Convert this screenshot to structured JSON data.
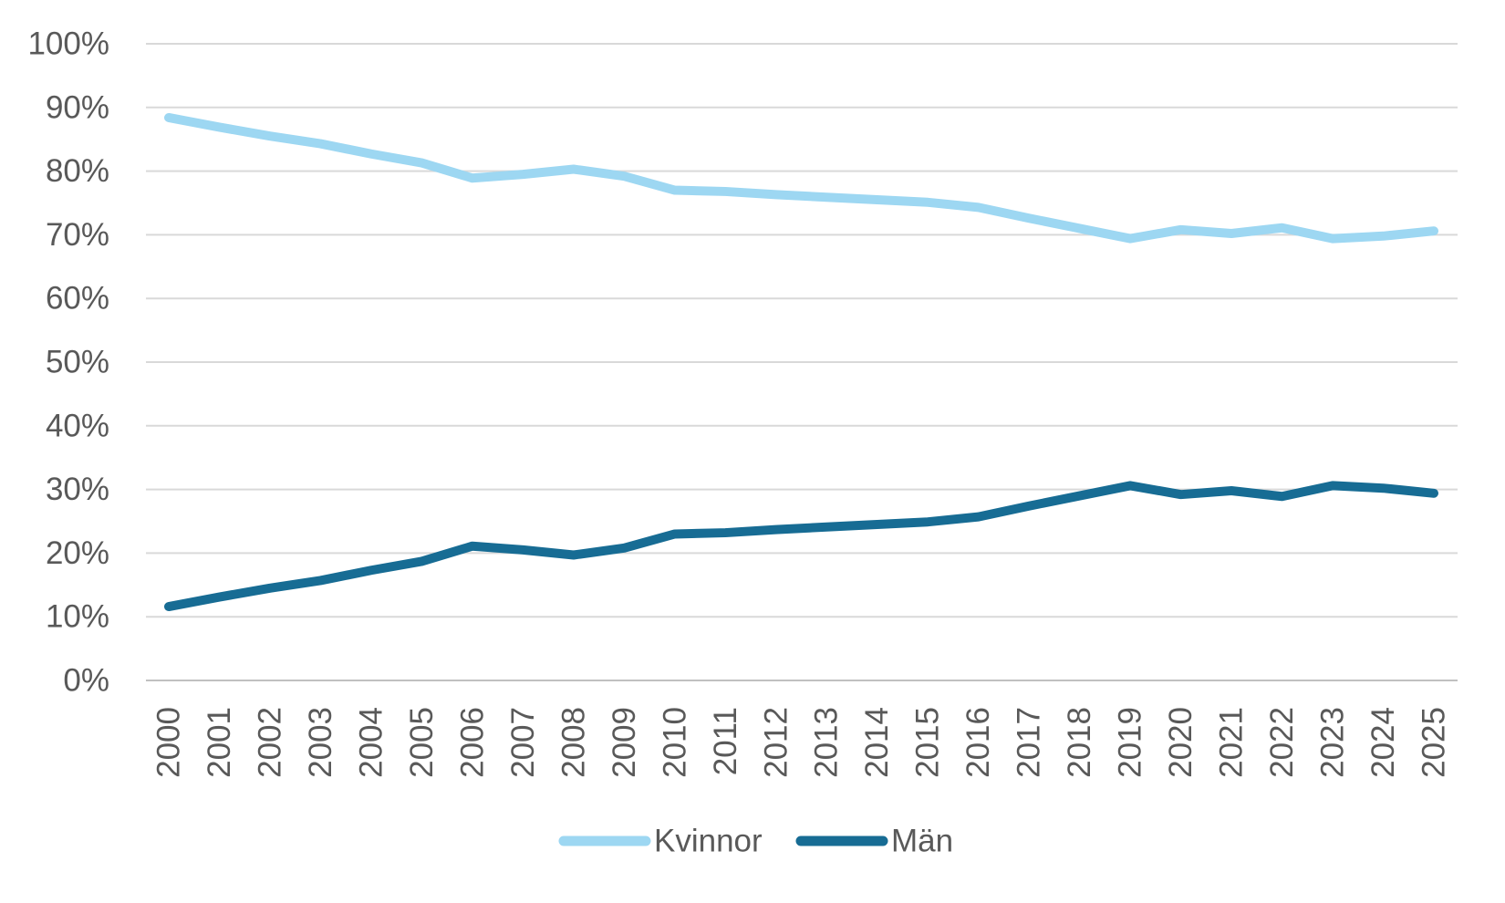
{
  "chart_data": {
    "type": "line",
    "x": [
      2000,
      2001,
      2002,
      2003,
      2004,
      2005,
      2006,
      2007,
      2008,
      2009,
      2010,
      2011,
      2012,
      2013,
      2014,
      2015,
      2016,
      2017,
      2018,
      2019,
      2020,
      2021,
      2022,
      2023,
      2024,
      2025
    ],
    "series": [
      {
        "name": "Kvinnor",
        "color": "#9DD7F2",
        "values": [
          88.4,
          86.9,
          85.5,
          84.3,
          82.7,
          81.3,
          78.9,
          79.5,
          80.3,
          79.2,
          77.0,
          76.8,
          76.3,
          75.9,
          75.5,
          75.1,
          74.3,
          72.6,
          71.0,
          69.4,
          70.8,
          70.2,
          71.1,
          69.4,
          69.8,
          70.6
        ]
      },
      {
        "name": "Män",
        "color": "#176C94",
        "values": [
          11.6,
          13.1,
          14.5,
          15.7,
          17.3,
          18.7,
          21.1,
          20.5,
          19.7,
          20.8,
          23.0,
          23.2,
          23.7,
          24.1,
          24.5,
          24.9,
          25.7,
          27.4,
          29.0,
          30.6,
          29.2,
          29.8,
          28.9,
          30.6,
          30.2,
          29.4
        ]
      }
    ],
    "title": "",
    "xlabel": "",
    "ylabel": "",
    "ylim": [
      0,
      100
    ],
    "y_ticks": [
      "0%",
      "10%",
      "20%",
      "30%",
      "40%",
      "50%",
      "60%",
      "70%",
      "80%",
      "90%",
      "100%"
    ],
    "grid": true,
    "legend_position": "bottom"
  },
  "legend": {
    "kvinnor_label": "Kvinnor",
    "man_label": "Män"
  },
  "colors": {
    "grid_line": "#D9D9D9",
    "axis_line": "#C0C0C0",
    "tick_text": "#595959",
    "background": "#FFFFFF"
  }
}
